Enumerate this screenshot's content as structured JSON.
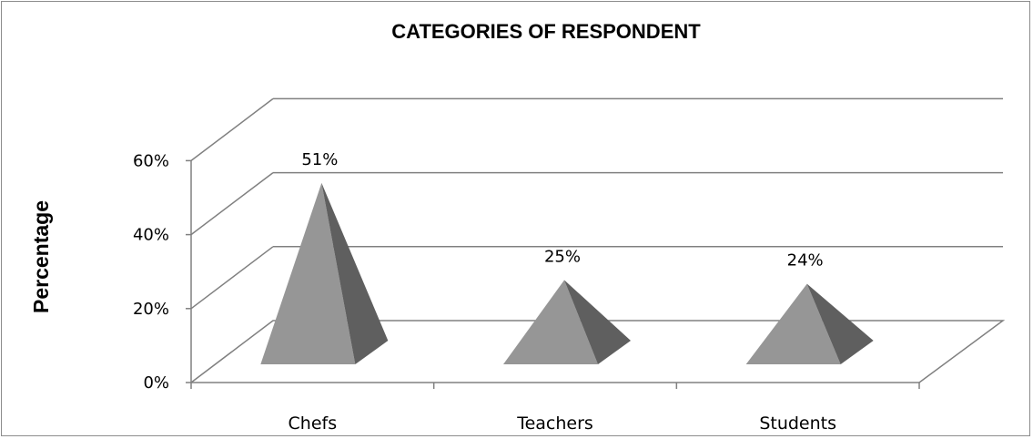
{
  "chart_data": {
    "type": "bar",
    "style": "3d-pyramid",
    "title": "CATEGORIES OF RESPONDENT",
    "xlabel": "",
    "ylabel": "Percentage",
    "categories": [
      "Chefs",
      "Teachers",
      "Students"
    ],
    "values": [
      51,
      25,
      24
    ],
    "data_labels": [
      "51%",
      "25%",
      "24%"
    ],
    "y_ticks": [
      "0%",
      "20%",
      "40%",
      "60%"
    ],
    "ylim": [
      0,
      60
    ],
    "grid": true,
    "legend": "none",
    "colors": {
      "front_face": "#969696",
      "side_face": "#5f5f5f",
      "gridline": "#808080"
    }
  }
}
